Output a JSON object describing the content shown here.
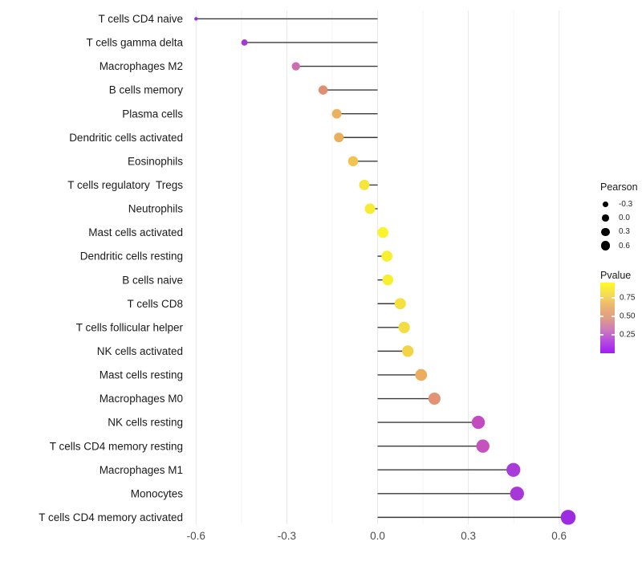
{
  "chart_data": {
    "type": "lollipop",
    "title": "",
    "xlabel": "",
    "ylabel": "",
    "xlim": [
      -0.63,
      0.76
    ],
    "baseline_x": 0.0,
    "x_major_ticks": [
      -0.6,
      -0.3,
      0.0,
      0.3,
      0.6
    ],
    "x_tick_labels": [
      "-0.6",
      "-0.3",
      "0.0",
      "0.3",
      "0.6"
    ],
    "x_minor_ticks": [
      -0.45,
      -0.15,
      0.15,
      0.45
    ],
    "grid": "vertical-only",
    "size_aesthetic": "Pearson",
    "color_aesthetic": "Pvalue",
    "rows": [
      {
        "label": "T cells CD4 naive",
        "pearson": -0.6,
        "dot_color": "#9430db"
      },
      {
        "label": "T cells gamma delta",
        "pearson": -0.44,
        "dot_color": "#a338d7"
      },
      {
        "label": "Macrophages M2",
        "pearson": -0.27,
        "dot_color": "#ce6cb1"
      },
      {
        "label": "B cells memory",
        "pearson": -0.18,
        "dot_color": "#df8e72"
      },
      {
        "label": "Plasma cells",
        "pearson": -0.135,
        "dot_color": "#ebb25d"
      },
      {
        "label": "Dendritic cells activated",
        "pearson": -0.128,
        "dot_color": "#ebae5b"
      },
      {
        "label": "Eosinophils",
        "pearson": -0.081,
        "dot_color": "#efc44f"
      },
      {
        "label": "T cells regulatory  Tregs",
        "pearson": -0.044,
        "dot_color": "#f5e53c"
      },
      {
        "label": "Neutrophils",
        "pearson": -0.025,
        "dot_color": "#f6ec35"
      },
      {
        "label": "Mast cells activated",
        "pearson": 0.018,
        "dot_color": "#faf42a"
      },
      {
        "label": "Dendritic cells resting",
        "pearson": 0.031,
        "dot_color": "#f8ef30"
      },
      {
        "label": "B cells naive",
        "pearson": 0.034,
        "dot_color": "#f8ee32"
      },
      {
        "label": "T cells CD8",
        "pearson": 0.075,
        "dot_color": "#f4e13e"
      },
      {
        "label": "T cells follicular helper",
        "pearson": 0.088,
        "dot_color": "#f3de41"
      },
      {
        "label": "NK cells activated",
        "pearson": 0.1,
        "dot_color": "#f1d546"
      },
      {
        "label": "Mast cells resting",
        "pearson": 0.144,
        "dot_color": "#ecad5f"
      },
      {
        "label": "Macrophages M0",
        "pearson": 0.188,
        "dot_color": "#e19374"
      },
      {
        "label": "NK cells resting",
        "pearson": 0.333,
        "dot_color": "#c24bc1"
      },
      {
        "label": "T cells CD4 memory resting",
        "pearson": 0.348,
        "dot_color": "#c553be"
      },
      {
        "label": "Macrophages M1",
        "pearson": 0.449,
        "dot_color": "#a93bd8"
      },
      {
        "label": "Monocytes",
        "pearson": 0.461,
        "dot_color": "#a737d9"
      },
      {
        "label": "T cells CD4 memory activated",
        "pearson": 0.63,
        "dot_color": "#9d2be2"
      }
    ]
  },
  "legend": {
    "size": {
      "title": "Pearson",
      "items": [
        {
          "label": "-0.3"
        },
        {
          "label": "0.0"
        },
        {
          "label": "0.3"
        },
        {
          "label": "0.6"
        }
      ]
    },
    "color": {
      "title": "Pvalue",
      "tick_labels": [
        "0.75",
        "0.50",
        "0.25"
      ],
      "gradient_stops": [
        "#fdfb25",
        "#f6dc55",
        "#ebb573",
        "#e09d85",
        "#cc7bbc",
        "#b54be0",
        "#a11cf3"
      ]
    }
  },
  "colors": {
    "stem": "#3a3a3a",
    "major_grid": "#e7e7e7",
    "minor_grid": "#f3f3f3",
    "axis_text": "#4d4d4d",
    "category_text": "#1a1a1a",
    "legend_dot": "#000000"
  }
}
